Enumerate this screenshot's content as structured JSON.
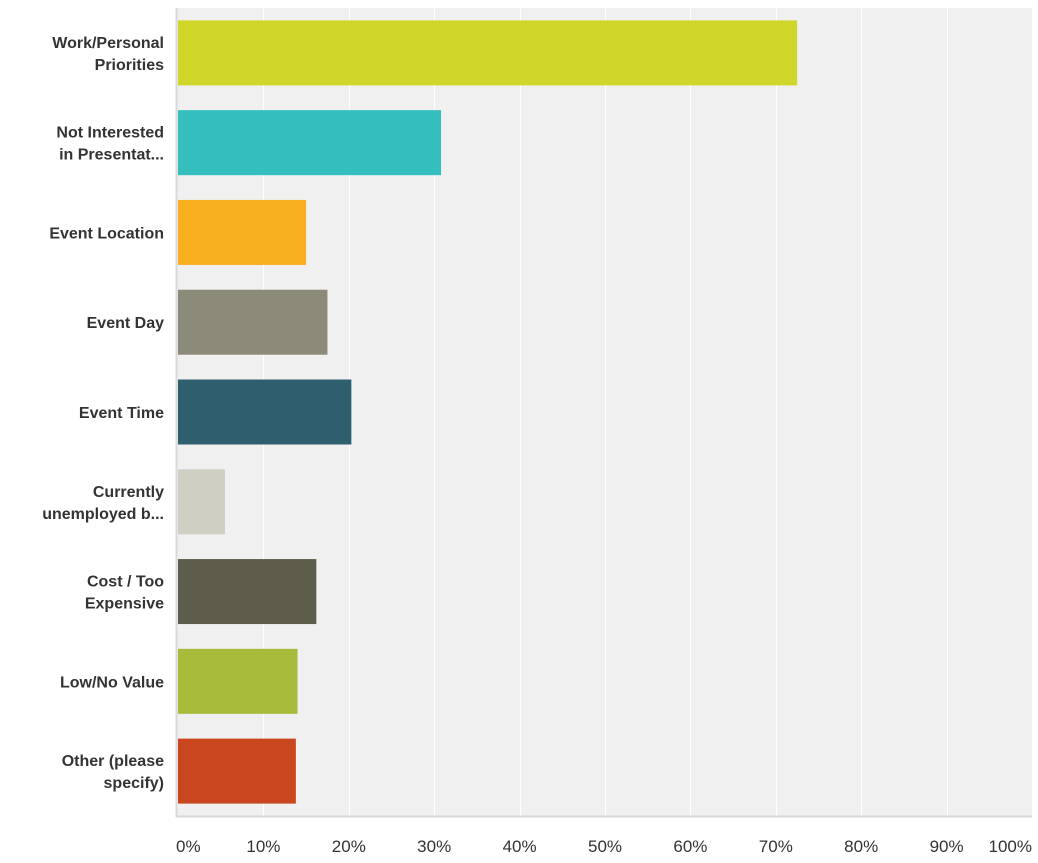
{
  "chart_data": {
    "type": "bar",
    "orientation": "horizontal",
    "categories": [
      [
        "Work/Personal",
        "Priorities"
      ],
      [
        "Not Interested",
        "in Presentat..."
      ],
      [
        "Event Location"
      ],
      [
        "Event Day"
      ],
      [
        "Event Time"
      ],
      [
        "Currently",
        "unemployed b..."
      ],
      [
        "Cost / Too",
        "Expensive"
      ],
      [
        "Low/No Value"
      ],
      [
        "Other (please",
        "specify)"
      ]
    ],
    "values": [
      72.5,
      30.8,
      15.0,
      17.5,
      20.3,
      5.5,
      16.2,
      14.0,
      13.8
    ],
    "colors": [
      "#d0d62a",
      "#34bebd",
      "#f7af1f",
      "#8c8b7a",
      "#2f5f6e",
      "#d0cfc3",
      "#5e5c4b",
      "#a8bb3a",
      "#c9461e"
    ],
    "xlim": [
      0,
      100
    ],
    "xticks": [
      "0%",
      "10%",
      "20%",
      "30%",
      "40%",
      "50%",
      "60%",
      "70%",
      "80%",
      "90%",
      "100%"
    ],
    "grid": true,
    "background": "#f0f0f0",
    "gridline_color": "#ffffff"
  }
}
